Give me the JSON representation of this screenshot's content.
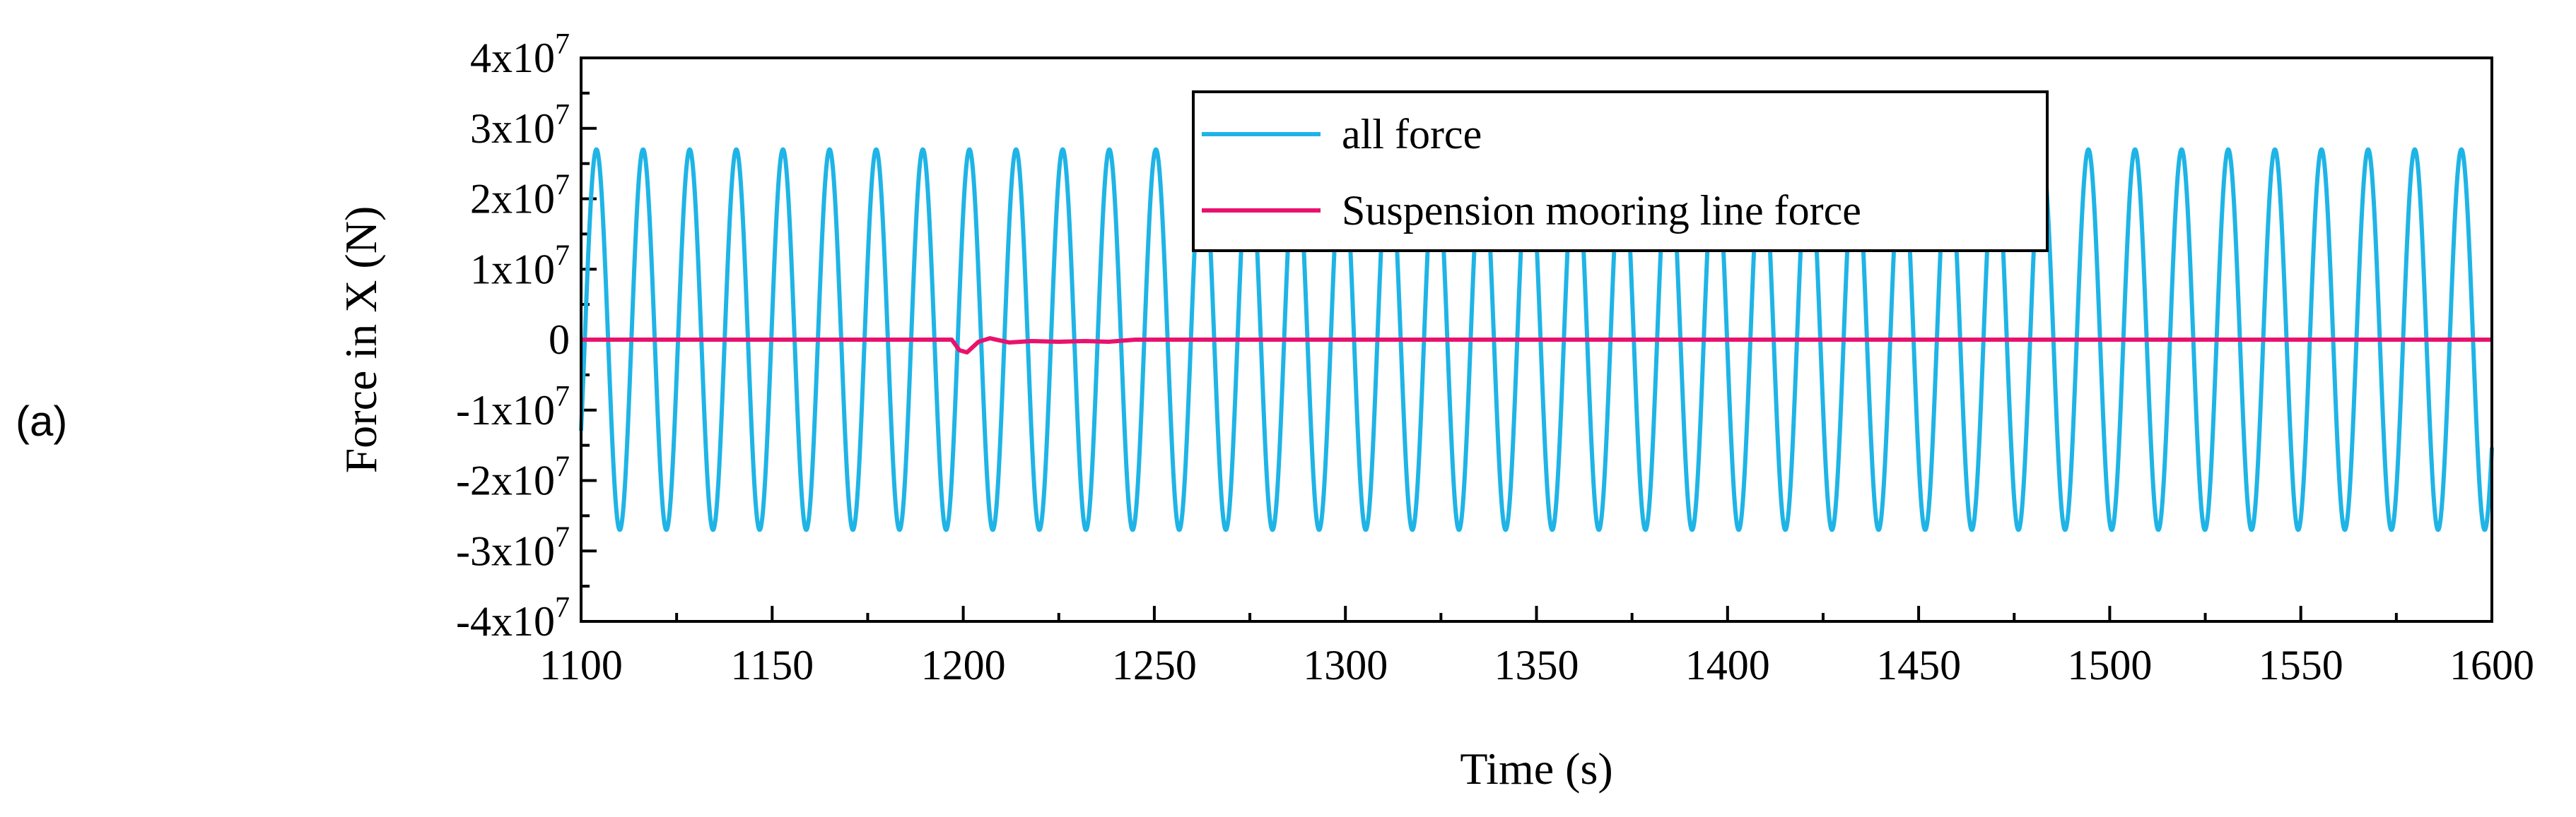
{
  "panel_label": "(a)",
  "colors": {
    "all_force": "#1fb4e6",
    "suspension": "#e8126e",
    "axis": "#000000",
    "background": "#ffffff"
  },
  "chart_data": {
    "type": "line",
    "title": "",
    "xlabel": "Time  (s)",
    "ylabel": "Force in X  (N)",
    "xlim": [
      1100,
      1600
    ],
    "ylim": [
      -40000000,
      40000000
    ],
    "x_ticks": [
      1100,
      1150,
      1200,
      1250,
      1300,
      1350,
      1400,
      1450,
      1500,
      1550,
      1600
    ],
    "y_ticks": [
      {
        "value": 40000000,
        "mantissa": "4",
        "base": "x10",
        "exp": "7"
      },
      {
        "value": 30000000,
        "mantissa": "3",
        "base": "x10",
        "exp": "7"
      },
      {
        "value": 20000000,
        "mantissa": "2",
        "base": "x10",
        "exp": "7"
      },
      {
        "value": 10000000,
        "mantissa": "1",
        "base": "x10",
        "exp": "7"
      },
      {
        "value": 0,
        "mantissa": "0",
        "base": "",
        "exp": ""
      },
      {
        "value": -10000000,
        "mantissa": "-1",
        "base": "x10",
        "exp": "7"
      },
      {
        "value": -20000000,
        "mantissa": "-2",
        "base": "x10",
        "exp": "7"
      },
      {
        "value": -30000000,
        "mantissa": "-3",
        "base": "x10",
        "exp": "7"
      },
      {
        "value": -40000000,
        "mantissa": "-4",
        "base": "x10",
        "exp": "7"
      }
    ],
    "legend_position": "top-center",
    "series": [
      {
        "name": "all force",
        "kind": "sinusoid",
        "amplitude": 27000000,
        "offset": 0,
        "period_s": 12.2,
        "start_s": 1100,
        "end_s": 1600
      },
      {
        "name": "Suspension mooring line force",
        "kind": "points",
        "points": [
          [
            1100,
            0
          ],
          [
            1197,
            0
          ],
          [
            1199,
            -1500000
          ],
          [
            1201,
            -1800000
          ],
          [
            1204,
            -300000
          ],
          [
            1207,
            200000
          ],
          [
            1212,
            -400000
          ],
          [
            1218,
            -200000
          ],
          [
            1225,
            -300000
          ],
          [
            1232,
            -200000
          ],
          [
            1238,
            -300000
          ],
          [
            1245,
            0
          ],
          [
            1600,
            0
          ]
        ]
      }
    ]
  }
}
